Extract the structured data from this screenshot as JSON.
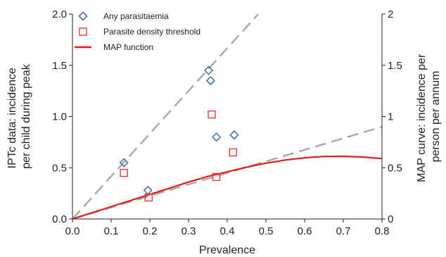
{
  "chart_data": {
    "type": "scatter",
    "title": "",
    "xlabel": "Prevalence",
    "ylabel_left": [
      "IPTc data: incidence",
      "per child during peak"
    ],
    "ylabel_right": [
      "MAP curve: incidence per",
      "person per annum"
    ],
    "xlim": [
      0.0,
      0.8
    ],
    "ylim_left": [
      0.0,
      2.0
    ],
    "ylim_right": [
      0,
      2
    ],
    "x_ticks": [
      "0.0",
      "0.1",
      "0.2",
      "0.3",
      "0.4",
      "0.5",
      "0.6",
      "0.7",
      "0.8"
    ],
    "y_ticks_left": [
      "0.0",
      "0.5",
      "1.0",
      "1.5",
      "2.0"
    ],
    "y_ticks_right": [
      "0",
      "0.5",
      "1",
      "1.5",
      "2"
    ],
    "grid": false,
    "legend_position": "top-left",
    "series": [
      {
        "name": "Any parasitaemia",
        "kind": "scatter",
        "marker": "diamond",
        "color": "#4a74a8",
        "points": [
          [
            0.133,
            0.55
          ],
          [
            0.195,
            0.28
          ],
          [
            0.352,
            1.45
          ],
          [
            0.357,
            1.35
          ],
          [
            0.372,
            0.8
          ],
          [
            0.418,
            0.82
          ]
        ]
      },
      {
        "name": "Parasite density threshold",
        "kind": "scatter",
        "marker": "square",
        "color": "#e03a3a",
        "points": [
          [
            0.133,
            0.45
          ],
          [
            0.197,
            0.21
          ],
          [
            0.36,
            1.02
          ],
          [
            0.372,
            0.41
          ],
          [
            0.415,
            0.65
          ]
        ]
      },
      {
        "name": "MAP function",
        "kind": "line",
        "color": "#e01c1c",
        "points": [
          [
            0.0,
            0.0
          ],
          [
            0.05,
            0.06
          ],
          [
            0.1,
            0.12
          ],
          [
            0.15,
            0.18
          ],
          [
            0.2,
            0.24
          ],
          [
            0.25,
            0.3
          ],
          [
            0.3,
            0.36
          ],
          [
            0.35,
            0.415
          ],
          [
            0.4,
            0.46
          ],
          [
            0.45,
            0.505
          ],
          [
            0.5,
            0.545
          ],
          [
            0.55,
            0.575
          ],
          [
            0.6,
            0.597
          ],
          [
            0.65,
            0.61
          ],
          [
            0.7,
            0.612
          ],
          [
            0.75,
            0.605
          ],
          [
            0.8,
            0.59
          ]
        ]
      }
    ],
    "reference_lines": [
      {
        "style": "dashed",
        "color": "#aaaaaa",
        "points": [
          [
            0.0,
            0.0
          ],
          [
            0.48,
            2.0
          ]
        ]
      },
      {
        "style": "dashed",
        "color": "#aaaaaa",
        "points": [
          [
            0.0,
            0.0
          ],
          [
            0.8,
            0.9
          ]
        ]
      }
    ]
  }
}
